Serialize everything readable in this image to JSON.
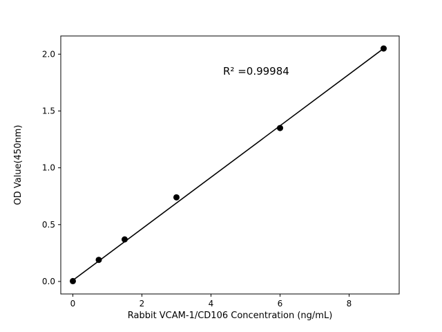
{
  "chart_data": {
    "type": "scatter",
    "title": "",
    "xlabel": "Rabbit VCAM-1/CD106 Concentration (ng/mL)",
    "ylabel": "OD Value(450nm)",
    "x": [
      0,
      0.75,
      1.5,
      3,
      6,
      9
    ],
    "y": [
      0.003,
      0.19,
      0.37,
      0.74,
      1.35,
      2.05
    ],
    "fit_line": {
      "x": [
        0,
        9
      ],
      "y": [
        0.01,
        2.05
      ]
    },
    "annotation": {
      "text": "R² =0.99984",
      "x": 4.35,
      "y": 1.82
    },
    "xlim": [
      -0.35,
      9.45
    ],
    "ylim": [
      -0.11,
      2.16
    ],
    "xticks": [
      0,
      2,
      4,
      6,
      8
    ],
    "yticks": [
      0.0,
      0.5,
      1.0,
      1.5,
      2.0
    ],
    "grid": false,
    "legend": null,
    "background_color": "#ffffff",
    "marker_color": "#000000",
    "line_color": "#000000",
    "axis_color": "#000000"
  }
}
